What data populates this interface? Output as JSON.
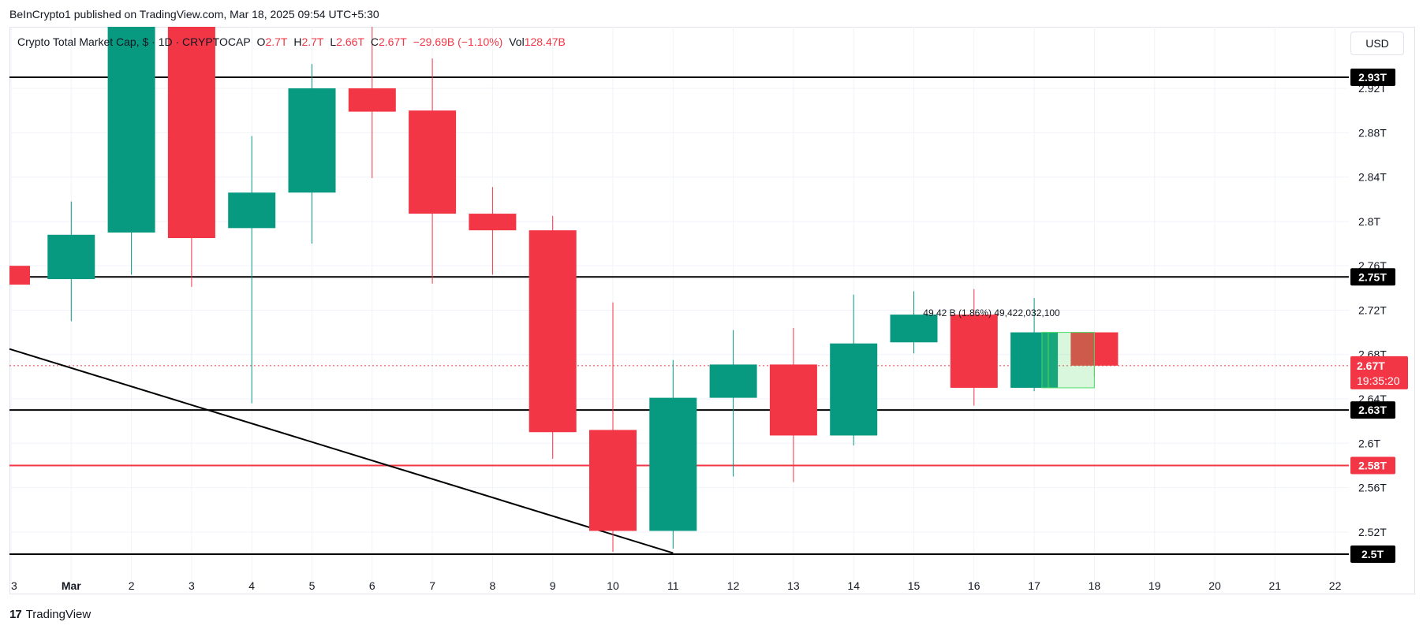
{
  "header": {
    "publisher": "BeInCrypto1 published on TradingView.com, Mar 18, 2025 09:54 UTC+5:30"
  },
  "legend": {
    "title": "Crypto Total Market Cap, $ · 1D · CRYPTOCAP",
    "o_label": "O",
    "o_value": "2.7T",
    "h_label": "H",
    "h_value": "2.7T",
    "l_label": "L",
    "l_value": "2.66T",
    "c_label": "C",
    "c_value": "2.67T",
    "change": "−29.69B (−1.10%)",
    "vol_label": "Vol",
    "vol_value": "128.47B"
  },
  "currency": "USD",
  "footer": {
    "brand": "TradingView",
    "mark": "17"
  },
  "measure_label": "49.42 B (1.86%) 49,422,032,100",
  "colors": {
    "up": "#089981",
    "down": "#f23645",
    "line": "#000000",
    "support_red": "#f23645"
  },
  "chart_data": {
    "type": "candlestick",
    "ylim": [
      2.49,
      2.975
    ],
    "yticks": [
      "2.92T",
      "2.88T",
      "2.84T",
      "2.8T",
      "2.76T",
      "2.72T",
      "2.68T",
      "2.64T",
      "2.6T",
      "2.56T",
      "2.52T"
    ],
    "ytick_values": [
      2.92,
      2.88,
      2.84,
      2.8,
      2.76,
      2.72,
      2.68,
      2.64,
      2.6,
      2.56,
      2.52
    ],
    "x_labels": [
      "3",
      "Mar",
      "2",
      "3",
      "4",
      "5",
      "6",
      "7",
      "8",
      "9",
      "10",
      "11",
      "12",
      "13",
      "14",
      "15",
      "16",
      "17",
      "18",
      "19",
      "20",
      "21",
      "22"
    ],
    "candles": [
      {
        "date": "Feb 28",
        "open": 2.76,
        "high": 2.76,
        "low": 2.743,
        "close": 2.743
      },
      {
        "date": "Mar 1",
        "open": 2.748,
        "high": 2.818,
        "low": 2.71,
        "close": 2.788
      },
      {
        "date": "Mar 2",
        "open": 2.79,
        "high": 2.99,
        "low": 2.752,
        "close": 2.98
      },
      {
        "date": "Mar 3",
        "open": 2.98,
        "high": 2.99,
        "low": 2.741,
        "close": 2.785
      },
      {
        "date": "Mar 4",
        "open": 2.794,
        "high": 2.877,
        "low": 2.636,
        "close": 2.826
      },
      {
        "date": "Mar 5",
        "open": 2.826,
        "high": 2.942,
        "low": 2.78,
        "close": 2.92
      },
      {
        "date": "Mar 6",
        "open": 2.92,
        "high": 2.99,
        "low": 2.839,
        "close": 2.899
      },
      {
        "date": "Mar 7",
        "open": 2.9,
        "high": 2.947,
        "low": 2.744,
        "close": 2.807
      },
      {
        "date": "Mar 8",
        "open": 2.807,
        "high": 2.831,
        "low": 2.752,
        "close": 2.792
      },
      {
        "date": "Mar 9",
        "open": 2.792,
        "high": 2.805,
        "low": 2.586,
        "close": 2.61
      },
      {
        "date": "Mar 10",
        "open": 2.612,
        "high": 2.727,
        "low": 2.502,
        "close": 2.521
      },
      {
        "date": "Mar 11",
        "open": 2.521,
        "high": 2.675,
        "low": 2.505,
        "close": 2.641
      },
      {
        "date": "Mar 12",
        "open": 2.641,
        "high": 2.702,
        "low": 2.57,
        "close": 2.671
      },
      {
        "date": "Mar 13",
        "open": 2.671,
        "high": 2.704,
        "low": 2.565,
        "close": 2.607
      },
      {
        "date": "Mar 14",
        "open": 2.607,
        "high": 2.734,
        "low": 2.598,
        "close": 2.69
      },
      {
        "date": "Mar 15",
        "open": 2.691,
        "high": 2.737,
        "low": 2.681,
        "close": 2.716
      },
      {
        "date": "Mar 16",
        "open": 2.716,
        "high": 2.739,
        "low": 2.634,
        "close": 2.65
      },
      {
        "date": "Mar 17",
        "open": 2.65,
        "high": 2.731,
        "low": 2.647,
        "close": 2.7
      },
      {
        "date": "Mar 18",
        "open": 2.7,
        "high": 2.7,
        "low": 2.66,
        "close": 2.67
      }
    ],
    "levels": [
      {
        "value": 2.93,
        "label": "2.93T",
        "color": "#000000"
      },
      {
        "value": 2.75,
        "label": "2.75T",
        "color": "#000000"
      },
      {
        "value": 2.63,
        "label": "2.63T",
        "color": "#000000"
      },
      {
        "value": 2.58,
        "label": "2.58T",
        "color": "#f23645"
      },
      {
        "value": 2.5,
        "label": "2.5T",
        "color": "#000000"
      }
    ],
    "trendline": {
      "from_index": 0,
      "from_value": 2.685,
      "to_index": 11,
      "to_value": 2.501
    },
    "last_price": {
      "value": 2.67,
      "label": "2.67T",
      "countdown": "19:35:20"
    },
    "measure": {
      "from_index": 17.3,
      "to_index": 18.0,
      "low": 2.65,
      "high": 2.7
    }
  }
}
